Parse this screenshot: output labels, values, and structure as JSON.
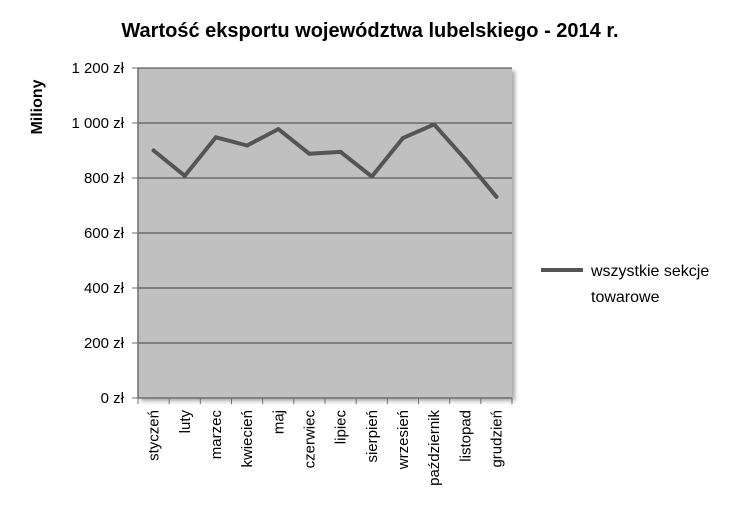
{
  "chart_data": {
    "type": "line",
    "title": "Wartość eksportu województwa lubelskiego - 2014 r.",
    "xlabel": "",
    "ylabel": "Miliony",
    "categories": [
      "styczeń",
      "luty",
      "marzec",
      "kwiecień",
      "maj",
      "czerwiec",
      "lipiec",
      "sierpień",
      "wrzesień",
      "październik",
      "listopad",
      "grudzień"
    ],
    "series": [
      {
        "name": "wszystkie sekcje towarowe",
        "legend_lines": [
          "wszystkie sekcje",
          "towarowe"
        ],
        "color": "#555555",
        "values": [
          900,
          808,
          948,
          918,
          978,
          888,
          895,
          805,
          945,
          995,
          868,
          732
        ]
      }
    ],
    "ylim": [
      0,
      1200
    ],
    "yticks": [
      0,
      200,
      400,
      600,
      800,
      1000,
      1200
    ],
    "ytick_labels": [
      "0 zł",
      "200 zł",
      "400 zł",
      "600 zł",
      "800 zł",
      "1 000 zł",
      "1 200 zł"
    ],
    "grid": true,
    "legend_position": "right",
    "colors": {
      "plot_bg": "#c0c0c0",
      "gridline": "#404040",
      "axis": "#6e6e6e"
    }
  }
}
